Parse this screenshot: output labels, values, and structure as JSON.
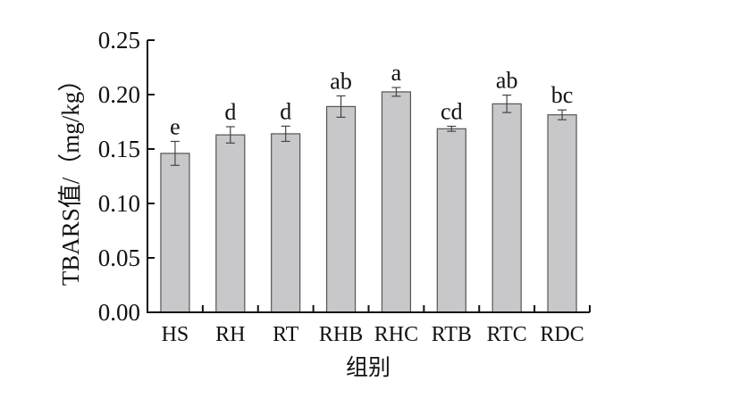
{
  "chart_data": {
    "type": "bar",
    "title": "",
    "xlabel": "组别",
    "ylabel": "TBARS值/（mg/kg）",
    "ylim": [
      0,
      0.25
    ],
    "yticks": [
      "0.00",
      "0.05",
      "0.10",
      "0.15",
      "0.20",
      "0.25"
    ],
    "grid": false,
    "categories": [
      "HS",
      "RH",
      "RT",
      "RHB",
      "RHC",
      "RTB",
      "RTC",
      "RDC"
    ],
    "values": [
      0.146,
      0.163,
      0.164,
      0.189,
      0.2025,
      0.1686,
      0.1915,
      0.1814
    ],
    "errors": [
      0.011,
      0.0075,
      0.007,
      0.0098,
      0.004,
      0.0023,
      0.008,
      0.0045
    ],
    "significance_labels": [
      "e",
      "d",
      "d",
      "ab",
      "a",
      "cd",
      "ab",
      "bc"
    ],
    "colors": {
      "bar_fill": "#c8c8ca",
      "bar_stroke": "#555555",
      "axis": "#111111"
    }
  }
}
